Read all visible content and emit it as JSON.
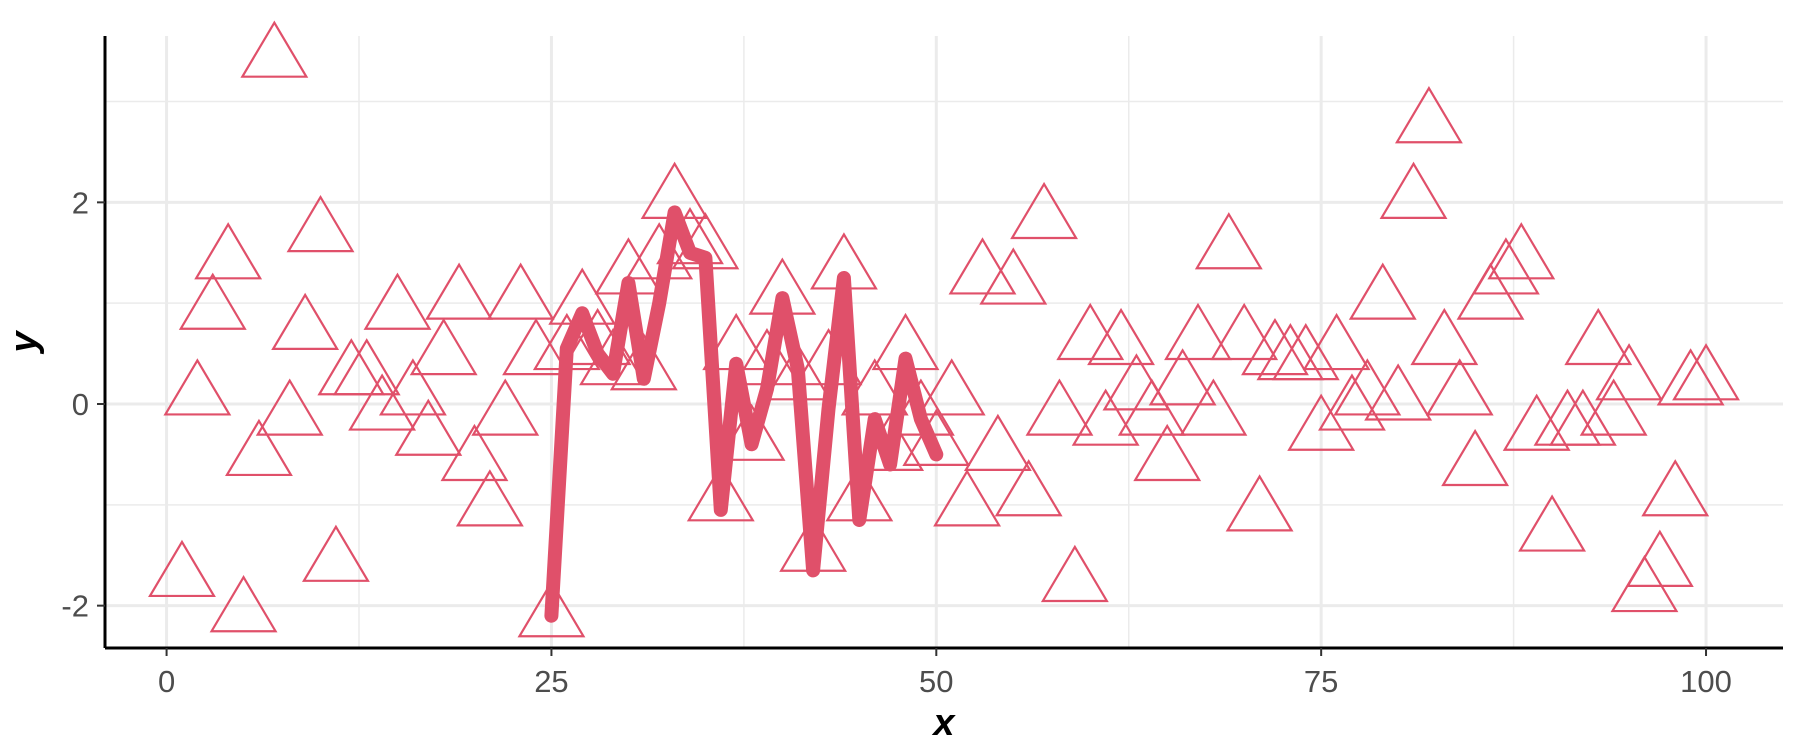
{
  "chart_data": {
    "type": "scatter",
    "xlabel": "x",
    "ylabel": "y",
    "xlim": [
      -4,
      105
    ],
    "ylim": [
      -2.42,
      3.65
    ],
    "x_ticks": [
      0,
      25,
      50,
      75,
      100
    ],
    "x_tick_labels": [
      "0",
      "25",
      "50",
      "75",
      "100"
    ],
    "y_ticks": [
      -2,
      0,
      2
    ],
    "y_tick_labels": [
      "-2",
      "0",
      "2"
    ],
    "grid": true,
    "color": "#E0506A",
    "series": [
      {
        "kind": "points",
        "marker": "open-triangle",
        "x": [
          1,
          2,
          3,
          4,
          5,
          6,
          7,
          9,
          10,
          11,
          12,
          13,
          14,
          15,
          16,
          17,
          18,
          19,
          20,
          21,
          22,
          23,
          24,
          25,
          26,
          27,
          28,
          29,
          30,
          31,
          32,
          33,
          34,
          35,
          36,
          37,
          38,
          39,
          40,
          41,
          42,
          43,
          44,
          45,
          46,
          47,
          48,
          49,
          50,
          51,
          52,
          53,
          54,
          55,
          56,
          57,
          58,
          59,
          60,
          61,
          62,
          63,
          64,
          65,
          66,
          67,
          68,
          69,
          70,
          71,
          72,
          73,
          74,
          75,
          76,
          77,
          78,
          79,
          80,
          81,
          82,
          83,
          84,
          85,
          86,
          87,
          88,
          89,
          90,
          91,
          92,
          93,
          94,
          95,
          96,
          97,
          98,
          99,
          100,
          8
        ],
        "y": [
          -1.7,
          0.1,
          0.95,
          1.45,
          -2.05,
          -0.5,
          3.45,
          0.75,
          1.72,
          -1.55,
          0.3,
          0.3,
          -0.05,
          0.95,
          0.1,
          -0.3,
          0.5,
          1.05,
          -0.55,
          -1.0,
          -0.1,
          1.05,
          0.5,
          -2.1,
          0.55,
          1.0,
          0.6,
          0.4,
          1.3,
          0.35,
          1.45,
          2.05,
          1.6,
          1.55,
          -0.95,
          0.55,
          -0.35,
          0.4,
          1.1,
          0.25,
          -1.45,
          0.4,
          1.35,
          -0.95,
          0.1,
          -0.45,
          0.55,
          -0.1,
          -0.4,
          0.1,
          -1.0,
          1.3,
          -0.45,
          1.2,
          -0.9,
          1.85,
          -0.1,
          -1.75,
          0.65,
          -0.2,
          0.6,
          0.15,
          -0.1,
          -0.55,
          0.2,
          0.65,
          -0.1,
          1.55,
          0.65,
          -1.05,
          0.5,
          0.45,
          0.45,
          -0.25,
          0.55,
          -0.05,
          0.1,
          1.05,
          0.05,
          2.05,
          2.8,
          0.6,
          0.1,
          -0.6,
          1.05,
          1.3,
          1.45,
          -0.25,
          -1.25,
          -0.2,
          -0.2,
          0.6,
          -0.1,
          0.25,
          -1.85,
          -1.6,
          -0.9,
          0.2,
          0.25,
          -0.1
        ]
      },
      {
        "kind": "line",
        "x": [
          25,
          26,
          27,
          28,
          29,
          30,
          31,
          32,
          33,
          34,
          35,
          36,
          37,
          38,
          39,
          40,
          41,
          42,
          43,
          44,
          45,
          46,
          47,
          48,
          49,
          50
        ],
        "y": [
          -2.1,
          0.55,
          0.9,
          0.5,
          0.3,
          1.2,
          0.25,
          1.0,
          1.9,
          1.5,
          1.45,
          -1.05,
          0.4,
          -0.4,
          0.15,
          1.05,
          0.35,
          -1.65,
          -0.05,
          1.25,
          -1.15,
          -0.15,
          -0.6,
          0.45,
          -0.15,
          -0.5
        ]
      }
    ]
  }
}
